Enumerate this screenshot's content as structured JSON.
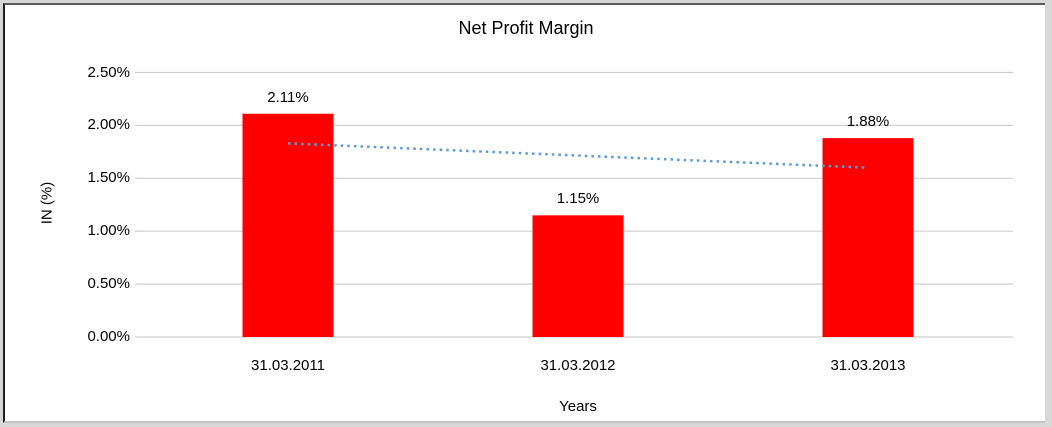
{
  "chart_data": {
    "type": "bar",
    "title": "Net Profit Margin",
    "xlabel": "Years",
    "ylabel": "IN (%)",
    "categories": [
      "31.03.2011",
      "31.03.2012",
      "31.03.2013"
    ],
    "values": [
      2.11,
      1.15,
      1.88
    ],
    "data_labels": [
      "2.11%",
      "1.15%",
      "1.88%"
    ],
    "y_ticks": [
      "0.00%",
      "0.50%",
      "1.00%",
      "1.50%",
      "2.00%",
      "2.50%"
    ],
    "ylim": [
      0,
      2.5
    ],
    "grid": true,
    "legend": "none",
    "bar_color": "#FF0000",
    "gridline_color": "#CFCFCF",
    "text_color": "#000000",
    "trendline": {
      "type": "linear-dotted",
      "color": "#5B9BD5",
      "y_start": 1.83,
      "y_end": 1.6
    }
  }
}
